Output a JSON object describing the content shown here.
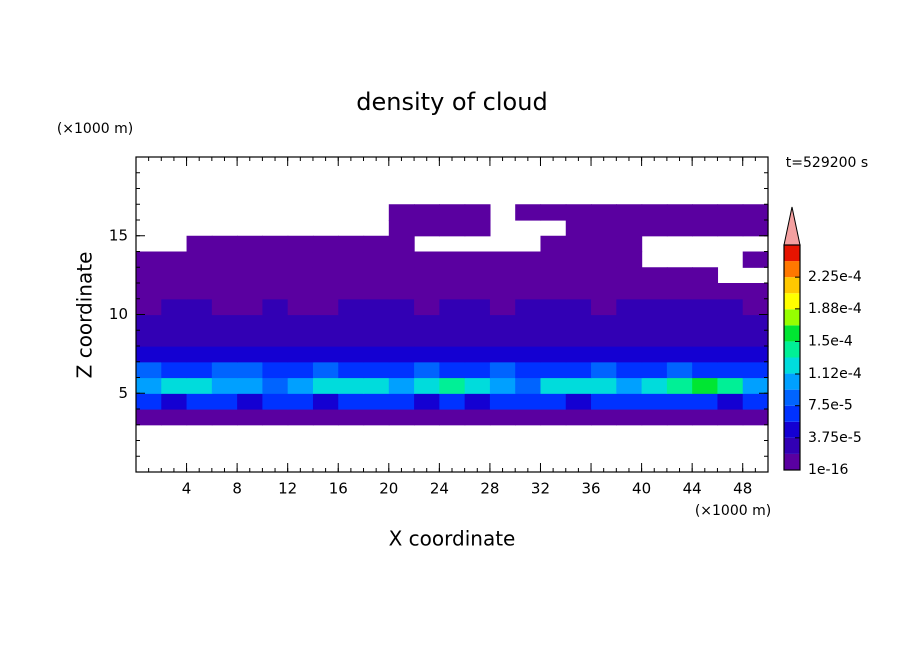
{
  "chart_data": {
    "type": "contour",
    "title": "density of cloud",
    "x_label": "X coordinate",
    "y_label": "Z coordinate",
    "x_unit": "(×1000 m)",
    "y_unit": "(×1000 m)",
    "annotation": "t=529200 s",
    "xlim": [
      0,
      50
    ],
    "ylim": [
      0,
      20
    ],
    "xticks": [
      4,
      8,
      12,
      16,
      20,
      24,
      28,
      32,
      36,
      40,
      44,
      48
    ],
    "yticks": [
      5,
      10,
      15
    ],
    "x": [
      1,
      3,
      5,
      7,
      9,
      11,
      13,
      15,
      17,
      19,
      21,
      23,
      25,
      27,
      29,
      31,
      33,
      35,
      37,
      39,
      41,
      43,
      45,
      47,
      49
    ],
    "y": [
      3.5,
      4.5,
      5.5,
      6.5,
      7.5,
      8.5,
      9.5,
      10.5,
      11.5,
      12.5,
      13.5,
      14.5,
      15.5,
      16.5
    ],
    "z": [
      [
        8e-06,
        8e-06,
        8e-06,
        8e-06,
        8e-06,
        8e-06,
        8e-06,
        8e-06,
        8e-06,
        8e-06,
        8e-06,
        8e-06,
        8e-06,
        8e-06,
        8e-06,
        8e-06,
        8e-06,
        8e-06,
        8e-06,
        8e-06,
        8e-06,
        8e-06,
        8e-06,
        8e-06,
        8e-06
      ],
      [
        6e-05,
        5e-05,
        7e-05,
        6e-05,
        5e-05,
        7e-05,
        6e-05,
        5e-05,
        6e-05,
        7e-05,
        6e-05,
        5e-05,
        6e-05,
        5e-05,
        6e-05,
        7e-05,
        6e-05,
        5e-05,
        6e-05,
        7e-05,
        6e-05,
        7e-05,
        6e-05,
        5e-05,
        6e-05
      ],
      [
        0.00011,
        0.00012,
        0.00013,
        0.0001,
        0.00011,
        9e-05,
        0.0001,
        0.00012,
        0.00013,
        0.00012,
        0.0001,
        0.00013,
        0.00014,
        0.00013,
        0.00011,
        9e-05,
        0.00012,
        0.00013,
        0.00012,
        0.00011,
        0.00013,
        0.00014,
        0.00015,
        0.00014,
        0.0001
      ],
      [
        8e-05,
        7e-05,
        6e-05,
        8e-05,
        9e-05,
        7e-05,
        6e-05,
        8e-05,
        7e-05,
        6e-05,
        7e-05,
        8e-05,
        7e-05,
        6e-05,
        8e-05,
        7e-05,
        6e-05,
        7e-05,
        8e-05,
        7e-05,
        6e-05,
        8e-05,
        7e-05,
        6e-05,
        7e-05
      ],
      [
        4e-05,
        4.5e-05,
        5e-05,
        4e-05,
        4.5e-05,
        5e-05,
        4e-05,
        4.5e-05,
        5e-05,
        4e-05,
        4.5e-05,
        4e-05,
        4.5e-05,
        4e-05,
        5e-05,
        4e-05,
        4.5e-05,
        4e-05,
        4.5e-05,
        5e-05,
        4e-05,
        4.5e-05,
        4e-05,
        4.5e-05,
        4e-05
      ],
      [
        3e-05,
        3e-05,
        3e-05,
        3.5e-05,
        3e-05,
        3e-05,
        3e-05,
        3e-05,
        3.5e-05,
        3e-05,
        3e-05,
        3e-05,
        3e-05,
        3e-05,
        3e-05,
        3.5e-05,
        3e-05,
        3e-05,
        3e-05,
        3e-05,
        3e-05,
        3e-05,
        3.5e-05,
        3e-05,
        3e-05
      ],
      [
        2.5e-05,
        2.5e-05,
        2.5e-05,
        2.5e-05,
        2.5e-05,
        2.5e-05,
        2.5e-05,
        2.5e-05,
        2.5e-05,
        2.5e-05,
        2.5e-05,
        2.5e-05,
        2.5e-05,
        2.5e-05,
        2.5e-05,
        2.5e-05,
        2.5e-05,
        2.5e-05,
        2.5e-05,
        2.5e-05,
        2.5e-05,
        2.5e-05,
        2.5e-05,
        2.5e-05,
        2.5e-05
      ],
      [
        1.5e-05,
        2.2e-05,
        2.2e-05,
        1.5e-05,
        1.5e-05,
        2.2e-05,
        1.5e-05,
        1.5e-05,
        2.2e-05,
        2.2e-05,
        2.2e-05,
        1.5e-05,
        2.2e-05,
        2.2e-05,
        1.5e-05,
        2.2e-05,
        2.2e-05,
        2.2e-05,
        1.5e-05,
        2.2e-05,
        2.2e-05,
        2.2e-05,
        2.2e-05,
        2.2e-05,
        1.5e-05
      ],
      [
        1.2e-05,
        1.2e-05,
        1.2e-05,
        1.2e-05,
        1.2e-05,
        1.2e-05,
        1.2e-05,
        1.2e-05,
        1.2e-05,
        1.2e-05,
        1.2e-05,
        1.2e-05,
        1.2e-05,
        1.2e-05,
        1.2e-05,
        1.2e-05,
        1.2e-05,
        1.2e-05,
        1.2e-05,
        1.2e-05,
        1.2e-05,
        1.2e-05,
        1.2e-05,
        1.2e-05,
        1.2e-05
      ],
      [
        8e-06,
        8e-06,
        8e-06,
        8e-06,
        8e-06,
        8e-06,
        8e-06,
        8e-06,
        8e-06,
        8e-06,
        8e-06,
        8e-06,
        8e-06,
        8e-06,
        8e-06,
        8e-06,
        8e-06,
        8e-06,
        8e-06,
        8e-06,
        8e-06,
        8e-06,
        8e-06,
        null,
        null
      ],
      [
        6e-06,
        6e-06,
        6e-06,
        6e-06,
        6e-06,
        6e-06,
        6e-06,
        6e-06,
        6e-06,
        6e-06,
        6e-06,
        6e-06,
        6e-06,
        6e-06,
        6e-06,
        6e-06,
        6e-06,
        6e-06,
        6e-06,
        6e-06,
        null,
        null,
        null,
        null,
        6e-06
      ],
      [
        null,
        null,
        5e-06,
        5e-06,
        5e-06,
        5e-06,
        5e-06,
        5e-06,
        5e-06,
        5e-06,
        5e-06,
        null,
        null,
        null,
        null,
        null,
        5e-06,
        5e-06,
        5e-06,
        5e-06,
        null,
        null,
        null,
        null,
        null
      ],
      [
        null,
        null,
        null,
        null,
        null,
        null,
        null,
        null,
        null,
        null,
        5e-06,
        5e-06,
        5e-06,
        5e-06,
        null,
        null,
        null,
        5e-06,
        5e-06,
        5e-06,
        5e-06,
        5e-06,
        5e-06,
        5e-06,
        5e-06
      ],
      [
        null,
        null,
        null,
        null,
        null,
        null,
        null,
        null,
        null,
        null,
        5e-06,
        5e-06,
        5e-06,
        5e-06,
        null,
        5e-06,
        5e-06,
        5e-06,
        5e-06,
        5e-06,
        5e-06,
        5e-06,
        5e-06,
        5e-06,
        5e-06
      ]
    ],
    "levels": [
      1e-16,
      1.875e-05,
      3.75e-05,
      5.625e-05,
      7.5e-05,
      9.375e-05,
      0.0001125,
      0.00013125,
      0.00015,
      0.00016875,
      0.0001875,
      0.00020625,
      0.000225,
      0.00024375
    ],
    "colors": [
      "#5a00a0",
      "#3200b4",
      "#1400d2",
      "#0032ff",
      "#0064ff",
      "#00a0ff",
      "#00dcdc",
      "#00f096",
      "#00e632",
      "#96ff00",
      "#ffff00",
      "#ffc800",
      "#ff7800",
      "#e61400"
    ],
    "extend_color": "#f4a0a0",
    "clim": [
      1e-16,
      0.0002625
    ],
    "cbar_ticks": [
      1e-16,
      {
        "value": 3.75e-05,
        "label": "3.75e-5"
      },
      {
        "value": 7.5e-05,
        "label": "7.5e-5"
      },
      {
        "value": 0.000112,
        "label": "1.12e-4"
      },
      {
        "value": 0.00015,
        "label": "1.5e-4"
      },
      {
        "value": 0.000188,
        "label": "1.88e-4"
      },
      {
        "value": 0.000225,
        "label": "2.25e-4"
      }
    ]
  }
}
